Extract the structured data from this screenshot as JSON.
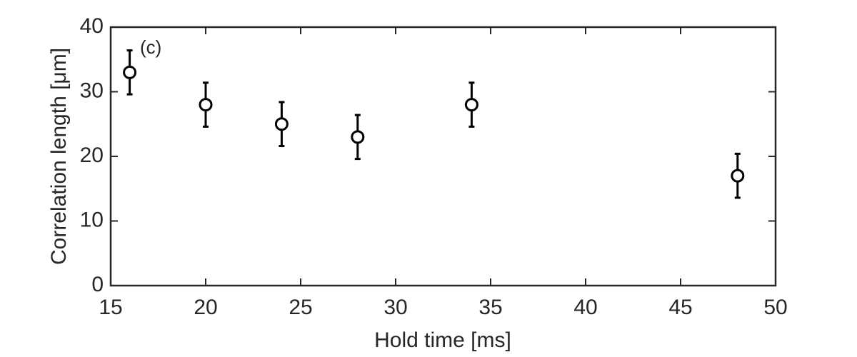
{
  "chart_data": {
    "type": "scatter",
    "xlabel": "Hold time [ms]",
    "ylabel": "Correlation length [μm]",
    "annotation": "(c)",
    "x": [
      16,
      20,
      24,
      28,
      34,
      48
    ],
    "values": [
      33,
      28,
      25,
      23,
      28,
      17
    ],
    "errors": [
      3.4,
      3.4,
      3.4,
      3.4,
      3.4,
      3.4
    ],
    "color": "#000000",
    "xlim": [
      15,
      50
    ],
    "xticks": [
      15,
      20,
      25,
      30,
      35,
      40,
      45,
      50
    ],
    "ylim": [
      0,
      40
    ],
    "yticks": [
      0,
      10,
      20,
      30,
      40
    ],
    "grid": false
  }
}
